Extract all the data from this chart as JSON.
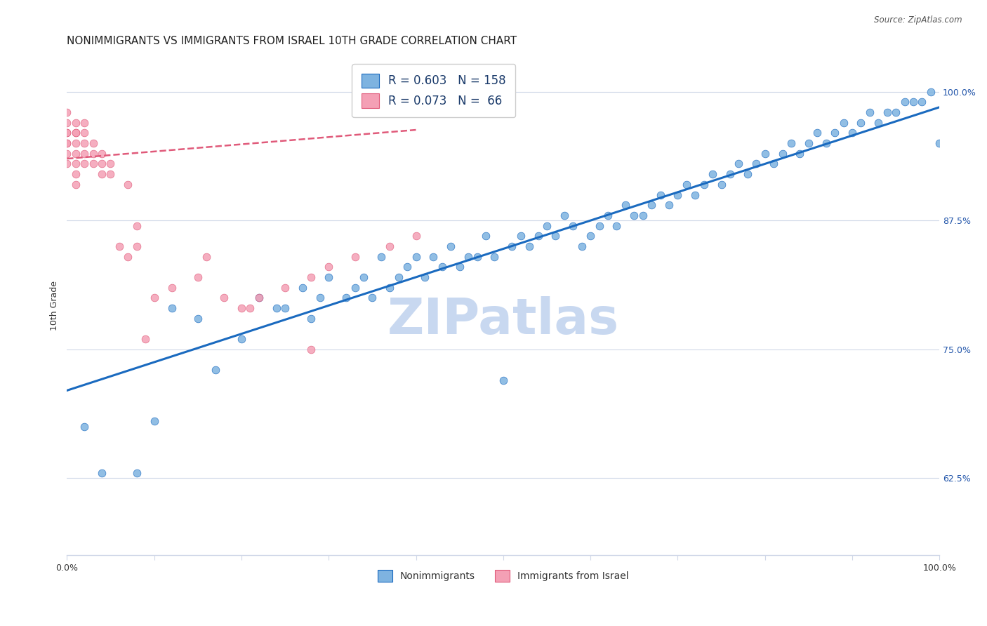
{
  "title": "NONIMMIGRANTS VS IMMIGRANTS FROM ISRAEL 10TH GRADE CORRELATION CHART",
  "source": "Source: ZipAtlas.com",
  "ylabel": "10th Grade",
  "ytick_values": [
    0.625,
    0.75,
    0.875,
    1.0
  ],
  "xlim": [
    0.0,
    1.0
  ],
  "ylim": [
    0.55,
    1.035
  ],
  "scatter_blue_color": "#7eb3e0",
  "scatter_pink_color": "#f4a0b5",
  "line_blue_color": "#1a6abf",
  "line_pink_color": "#e05a7a",
  "watermark": "ZIPatlas",
  "watermark_color": "#c8d8f0",
  "blue_scatter_x": [
    0.02,
    0.04,
    0.08,
    0.1,
    0.12,
    0.15,
    0.17,
    0.2,
    0.22,
    0.24,
    0.25,
    0.27,
    0.28,
    0.29,
    0.3,
    0.32,
    0.33,
    0.34,
    0.35,
    0.36,
    0.37,
    0.38,
    0.39,
    0.4,
    0.41,
    0.42,
    0.43,
    0.44,
    0.45,
    0.46,
    0.47,
    0.48,
    0.49,
    0.5,
    0.51,
    0.52,
    0.53,
    0.54,
    0.55,
    0.56,
    0.57,
    0.58,
    0.59,
    0.6,
    0.61,
    0.62,
    0.63,
    0.64,
    0.65,
    0.66,
    0.67,
    0.68,
    0.69,
    0.7,
    0.71,
    0.72,
    0.73,
    0.74,
    0.75,
    0.76,
    0.77,
    0.78,
    0.79,
    0.8,
    0.81,
    0.82,
    0.83,
    0.84,
    0.85,
    0.86,
    0.87,
    0.88,
    0.89,
    0.9,
    0.91,
    0.92,
    0.93,
    0.94,
    0.95,
    0.96,
    0.97,
    0.98,
    0.99,
    1.0
  ],
  "blue_scatter_y": [
    0.675,
    0.63,
    0.63,
    0.68,
    0.79,
    0.78,
    0.73,
    0.76,
    0.8,
    0.79,
    0.79,
    0.81,
    0.78,
    0.8,
    0.82,
    0.8,
    0.81,
    0.82,
    0.8,
    0.84,
    0.81,
    0.82,
    0.83,
    0.84,
    0.82,
    0.84,
    0.83,
    0.85,
    0.83,
    0.84,
    0.84,
    0.86,
    0.84,
    0.72,
    0.85,
    0.86,
    0.85,
    0.86,
    0.87,
    0.86,
    0.88,
    0.87,
    0.85,
    0.86,
    0.87,
    0.88,
    0.87,
    0.89,
    0.88,
    0.88,
    0.89,
    0.9,
    0.89,
    0.9,
    0.91,
    0.9,
    0.91,
    0.92,
    0.91,
    0.92,
    0.93,
    0.92,
    0.93,
    0.94,
    0.93,
    0.94,
    0.95,
    0.94,
    0.95,
    0.96,
    0.95,
    0.96,
    0.97,
    0.96,
    0.97,
    0.98,
    0.97,
    0.98,
    0.98,
    0.99,
    0.99,
    0.99,
    1.0,
    0.95
  ],
  "pink_scatter_x": [
    0.0,
    0.0,
    0.0,
    0.0,
    0.0,
    0.0,
    0.0,
    0.0,
    0.01,
    0.01,
    0.01,
    0.01,
    0.01,
    0.01,
    0.01,
    0.01,
    0.02,
    0.02,
    0.02,
    0.02,
    0.02,
    0.03,
    0.03,
    0.03,
    0.04,
    0.04,
    0.04,
    0.05,
    0.05,
    0.06,
    0.07,
    0.07,
    0.08,
    0.08,
    0.09,
    0.1,
    0.12,
    0.15,
    0.16,
    0.18,
    0.2,
    0.21,
    0.22,
    0.25,
    0.28,
    0.3,
    0.33,
    0.37,
    0.4,
    0.28
  ],
  "pink_scatter_y": [
    0.93,
    0.95,
    0.96,
    0.97,
    0.96,
    0.95,
    0.94,
    0.98,
    0.96,
    0.97,
    0.96,
    0.95,
    0.94,
    0.93,
    0.92,
    0.91,
    0.97,
    0.96,
    0.95,
    0.94,
    0.93,
    0.95,
    0.94,
    0.93,
    0.94,
    0.93,
    0.92,
    0.93,
    0.92,
    0.85,
    0.84,
    0.91,
    0.87,
    0.85,
    0.76,
    0.8,
    0.81,
    0.82,
    0.84,
    0.8,
    0.79,
    0.79,
    0.8,
    0.81,
    0.82,
    0.83,
    0.84,
    0.85,
    0.86,
    0.75
  ],
  "blue_line_x0": 0.0,
  "blue_line_x1": 1.0,
  "blue_line_y0": 0.71,
  "blue_line_y1": 0.985,
  "pink_line_x0": 0.0,
  "pink_line_x1": 0.4,
  "pink_line_y0": 0.935,
  "pink_line_y1": 0.963,
  "grid_color": "#d0d8e8",
  "bg_color": "#ffffff",
  "title_fontsize": 11,
  "axis_label_fontsize": 9,
  "tick_fontsize": 9,
  "legend_fontsize": 12
}
